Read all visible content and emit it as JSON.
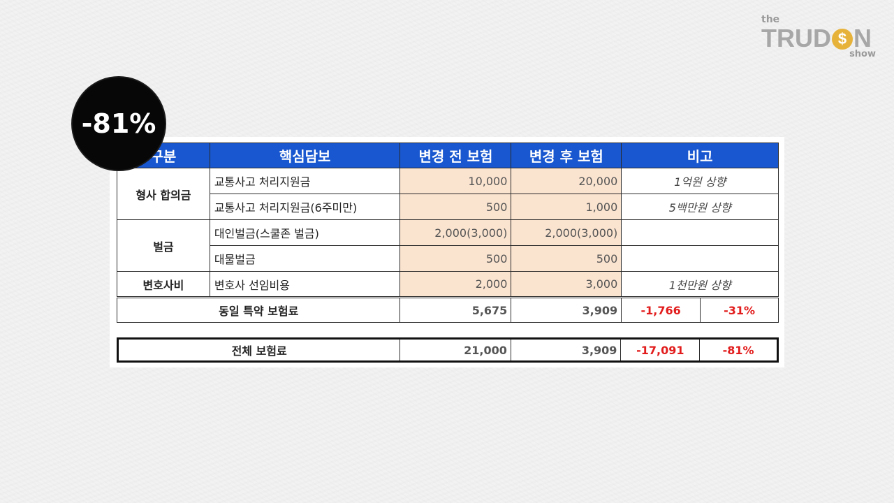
{
  "logo": {
    "the": "the",
    "brand_left": "TRUD",
    "brand_coin": "$",
    "brand_right": "N",
    "show": "show"
  },
  "badge": "-81%",
  "table": {
    "headers": [
      "구분",
      "핵심담보",
      "변경 전 보험",
      "변경 후 보험",
      "비고"
    ],
    "groups": {
      "criminal": "형사 합의금",
      "fine": "벌금",
      "lawyer": "변호사비"
    },
    "rows": [
      {
        "item": "교통사고 처리지원금",
        "before": "10,000",
        "after": "20,000",
        "note": "1억원 상향"
      },
      {
        "item": "교통사고 처리지원금(6주미만)",
        "before": "500",
        "after": "1,000",
        "note": "5백만원 상향"
      },
      {
        "item": "대인벌금(스쿨존 벌금)",
        "before": "2,000(3,000)",
        "after": "2,000(3,000)",
        "note": ""
      },
      {
        "item": "대물벌금",
        "before": "500",
        "after": "500",
        "note": ""
      },
      {
        "item": "변호사 선임비용",
        "before": "2,000",
        "after": "3,000",
        "note": "1천만원 상향"
      }
    ],
    "same_premium": {
      "label": "동일 특약 보험료",
      "before": "5,675",
      "after": "3,909",
      "diff": "-1,766",
      "pct": "-31%"
    },
    "total_premium": {
      "label": "전체 보험료",
      "before": "21,000",
      "after": "3,909",
      "diff": "-17,091",
      "pct": "-81%"
    }
  },
  "colors": {
    "header_bg": "#1857cf",
    "peach": "#fae3cf",
    "negative": "#e21c1c",
    "badge_bg": "#070707"
  }
}
